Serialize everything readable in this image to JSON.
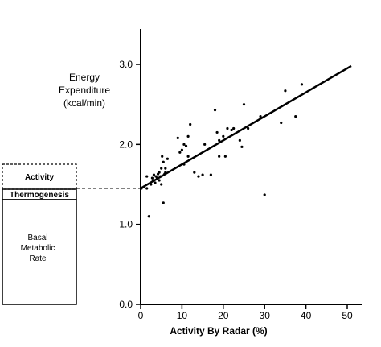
{
  "chart_data": {
    "type": "scatter",
    "title": "",
    "xlabel": "Activity By Radar (%)",
    "ylabel_lines": [
      "Energy",
      "Expenditure",
      "(kcal/min)"
    ],
    "xlim": [
      0,
      50
    ],
    "ylim": [
      0.0,
      3.0
    ],
    "xticks": [
      0,
      10,
      20,
      30,
      40,
      50
    ],
    "yticks": [
      0.0,
      1.0,
      2.0,
      3.0
    ],
    "ytick_labels": [
      "0.0",
      "1.0",
      "2.0",
      "3.0"
    ],
    "grid": false,
    "regression_line": {
      "x": [
        0,
        50
      ],
      "y": [
        1.45,
        2.97
      ]
    },
    "reference_line_y": 1.45,
    "points": [
      [
        0.2,
        1.45
      ],
      [
        0.8,
        1.47
      ],
      [
        1.5,
        1.45
      ],
      [
        1.5,
        1.6
      ],
      [
        2.0,
        1.1
      ],
      [
        2.5,
        1.5
      ],
      [
        2.8,
        1.58
      ],
      [
        3.0,
        1.55
      ],
      [
        3.2,
        1.62
      ],
      [
        3.5,
        1.52
      ],
      [
        3.7,
        1.6
      ],
      [
        4.0,
        1.58
      ],
      [
        4.2,
        1.63
      ],
      [
        4.5,
        1.55
      ],
      [
        4.5,
        1.65
      ],
      [
        4.8,
        1.6
      ],
      [
        5.0,
        1.5
      ],
      [
        5.0,
        1.7
      ],
      [
        5.2,
        1.85
      ],
      [
        5.5,
        1.27
      ],
      [
        5.5,
        1.78
      ],
      [
        5.8,
        1.63
      ],
      [
        6.0,
        1.65
      ],
      [
        6.0,
        1.7
      ],
      [
        6.5,
        1.82
      ],
      [
        9.0,
        2.08
      ],
      [
        9.5,
        1.9
      ],
      [
        10.0,
        1.93
      ],
      [
        10.5,
        1.75
      ],
      [
        10.5,
        2.0
      ],
      [
        11.0,
        1.98
      ],
      [
        11.5,
        2.1
      ],
      [
        11.5,
        1.85
      ],
      [
        12.0,
        2.25
      ],
      [
        13.0,
        1.65
      ],
      [
        14.0,
        1.6
      ],
      [
        15.0,
        1.62
      ],
      [
        15.5,
        2.0
      ],
      [
        17.0,
        1.62
      ],
      [
        18.0,
        2.43
      ],
      [
        18.5,
        2.15
      ],
      [
        19.0,
        1.85
      ],
      [
        19.0,
        2.05
      ],
      [
        20.0,
        2.1
      ],
      [
        20.5,
        1.85
      ],
      [
        21.0,
        2.2
      ],
      [
        22.0,
        2.18
      ],
      [
        22.5,
        2.2
      ],
      [
        24.0,
        2.05
      ],
      [
        24.5,
        1.97
      ],
      [
        25.0,
        2.5
      ],
      [
        26.0,
        2.2
      ],
      [
        29.0,
        2.35
      ],
      [
        30.0,
        1.37
      ],
      [
        34.0,
        2.27
      ],
      [
        35.0,
        2.67
      ],
      [
        37.5,
        2.35
      ],
      [
        39.0,
        2.75
      ]
    ]
  },
  "side_bar": {
    "activity_label": "Activity",
    "thermogenesis_label": "Thermogenesis",
    "basal_label_lines": [
      "Basal",
      "Metabolic",
      "Rate"
    ]
  }
}
